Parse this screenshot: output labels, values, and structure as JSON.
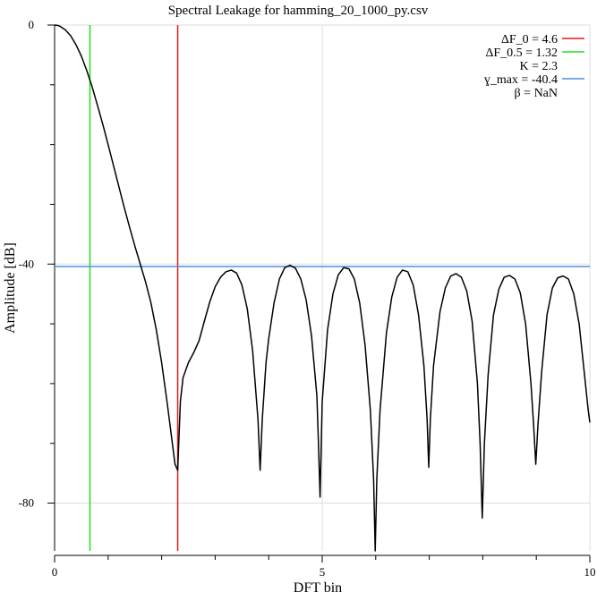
{
  "chart_data": {
    "type": "line",
    "title": "Spectral Leakage for hamming_20_1000_py.csv",
    "xlabel": "DFT bin",
    "ylabel": "Amplitude [dB]",
    "xlim": [
      0,
      10
    ],
    "ylim": [
      -88,
      0
    ],
    "grid": true,
    "legend_position": "top-right",
    "x_ticks": [
      {
        "value": 0,
        "label": "0"
      },
      {
        "value": 5,
        "label": "5"
      },
      {
        "value": 10,
        "label": "10"
      }
    ],
    "x_minor_ticks": [
      1,
      2,
      3,
      4,
      6,
      7,
      8,
      9
    ],
    "y_ticks": [
      {
        "value": 0,
        "label": "0"
      },
      {
        "value": -40,
        "label": "-40"
      },
      {
        "value": -80,
        "label": "-80"
      }
    ],
    "y_minor_ticks": [
      -10,
      -20,
      -30,
      -50,
      -60,
      -70
    ],
    "legend": [
      {
        "label": "ΔF_0 = 4.6",
        "color": "#e41a1c"
      },
      {
        "label": "ΔF_0.5 = 1.32",
        "color": "#22dd22"
      },
      {
        "label": "K = 2.3",
        "color": ""
      },
      {
        "label": "ɣ_max = -40.4",
        "color": "#4a90e2"
      },
      {
        "label": "β = NaN",
        "color": ""
      }
    ],
    "markers": {
      "vertical": [
        {
          "x": 0.66,
          "color": "#22dd22"
        },
        {
          "x": 2.3,
          "color": "#e41a1c"
        }
      ],
      "horizontal": [
        {
          "y": -40.4,
          "color": "#4a90e2"
        }
      ]
    },
    "series": [
      {
        "color": "#000000",
        "x": [
          0,
          0.05,
          0.1,
          0.2,
          0.3,
          0.4,
          0.5,
          0.6,
          0.7,
          0.8,
          0.9,
          1.0,
          1.1,
          1.2,
          1.3,
          1.4,
          1.5,
          1.6,
          1.7,
          1.8,
          1.9,
          2.0,
          2.1,
          2.15,
          2.2,
          2.25,
          2.3,
          2.35,
          2.4,
          2.5,
          2.6,
          2.7,
          2.8,
          2.9,
          3.0,
          3.1,
          3.2,
          3.3,
          3.4,
          3.5,
          3.6,
          3.7,
          3.8,
          3.84,
          3.88,
          3.95,
          4.0,
          4.1,
          4.2,
          4.3,
          4.4,
          4.5,
          4.6,
          4.7,
          4.8,
          4.9,
          4.93,
          4.96,
          5.0,
          5.1,
          5.2,
          5.3,
          5.4,
          5.5,
          5.6,
          5.7,
          5.8,
          5.9,
          5.96,
          5.99,
          6.02,
          6.08,
          6.2,
          6.3,
          6.4,
          6.5,
          6.6,
          6.7,
          6.8,
          6.9,
          6.96,
          6.99,
          7.02,
          7.08,
          7.2,
          7.3,
          7.4,
          7.5,
          7.6,
          7.7,
          7.8,
          7.9,
          7.95,
          7.99,
          8.03,
          8.1,
          8.2,
          8.3,
          8.4,
          8.5,
          8.6,
          8.7,
          8.8,
          8.9,
          8.95,
          8.99,
          9.03,
          9.1,
          9.2,
          9.3,
          9.4,
          9.5,
          9.6,
          9.7,
          9.8,
          9.9,
          9.97,
          10.0
        ],
        "y": [
          0,
          -0.05,
          -0.2,
          -0.8,
          -1.8,
          -3.3,
          -5.2,
          -7.6,
          -10.3,
          -13.4,
          -16.6,
          -20.0,
          -23.5,
          -27.0,
          -30.5,
          -33.8,
          -37.0,
          -40.0,
          -43.0,
          -46.5,
          -51.0,
          -56.5,
          -63.0,
          -66.5,
          -70.0,
          -73.5,
          -74.5,
          -63.0,
          -59.0,
          -56.5,
          -54.8,
          -52.8,
          -49.5,
          -46.3,
          -43.8,
          -42.2,
          -41.3,
          -41.0,
          -41.5,
          -43.5,
          -47.5,
          -54.5,
          -66.0,
          -74.5,
          -66.0,
          -56.5,
          -52.5,
          -46.5,
          -42.5,
          -40.6,
          -40.2,
          -40.7,
          -42.5,
          -46.0,
          -52.0,
          -62.0,
          -70.0,
          -79.0,
          -63.0,
          -51.0,
          -45.0,
          -41.8,
          -40.6,
          -40.8,
          -42.5,
          -46.5,
          -53.5,
          -64.5,
          -76.0,
          -88.0,
          -76.0,
          -64.5,
          -51.5,
          -45.5,
          -42.2,
          -41.0,
          -41.3,
          -43.5,
          -48.5,
          -57.0,
          -66.0,
          -74.0,
          -66.0,
          -57.0,
          -48.0,
          -44.0,
          -42.0,
          -41.6,
          -42.2,
          -44.5,
          -49.5,
          -60.0,
          -70.0,
          -82.5,
          -70.0,
          -58.5,
          -48.5,
          -44.2,
          -42.2,
          -41.9,
          -42.5,
          -44.8,
          -50.0,
          -60.0,
          -67.0,
          -73.5,
          -67.0,
          -58.0,
          -48.5,
          -44.0,
          -42.3,
          -42.0,
          -42.5,
          -45.0,
          -50.0,
          -58.5,
          -64.5,
          -66.5
        ]
      }
    ]
  }
}
